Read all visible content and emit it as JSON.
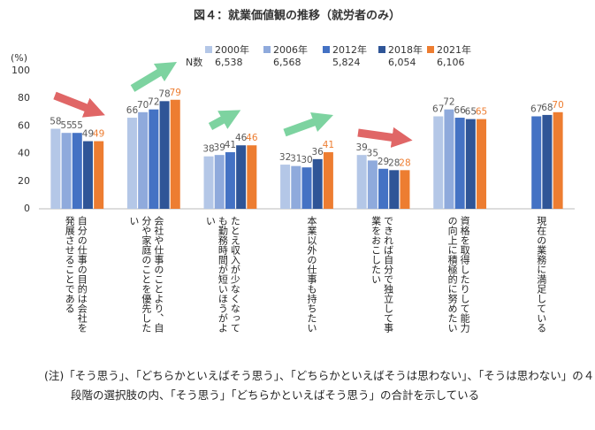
{
  "chart_data": {
    "type": "bar",
    "title": "図４：就業価値観の推移（就労者のみ）",
    "y_unit": "(%)",
    "n_label": "N数",
    "categories": [
      "自分の仕事の目的は会社を発展させることである",
      "会社や仕事のことより、自分や家庭のことを優先したい",
      "たとえ収入が少なくなっても勤務時間が短いほうがよい",
      "本業以外の仕事も持ちたい",
      "できれば自分で独立して事業をおこしたい",
      "資格を取得したりして能力の向上に積極的に努めたい",
      "現在の業務に満足している"
    ],
    "series": [
      {
        "name": "2000年",
        "n": "6,538",
        "color": "#b4c7e7",
        "label_color": "#595959",
        "values": [
          58,
          66,
          38,
          32,
          39,
          67,
          null
        ]
      },
      {
        "name": "2006年",
        "n": "6,568",
        "color": "#8faadc",
        "label_color": "#595959",
        "values": [
          55,
          70,
          39,
          31,
          35,
          72,
          null
        ]
      },
      {
        "name": "2012年",
        "n": "5,824",
        "color": "#4472c4",
        "label_color": "#595959",
        "values": [
          55,
          72,
          41,
          30,
          29,
          66,
          67
        ]
      },
      {
        "name": "2018年",
        "n": "6,054",
        "color": "#2f5597",
        "label_color": "#595959",
        "values": [
          49,
          78,
          46,
          36,
          28,
          65,
          68
        ]
      },
      {
        "name": "2021年",
        "n": "6,106",
        "color": "#ed7d31",
        "label_color": "#ed7d31",
        "values": [
          49,
          79,
          46,
          41,
          28,
          65,
          70
        ]
      }
    ],
    "ylim": [
      0,
      100
    ],
    "yticks": [
      0,
      20,
      40,
      60,
      80,
      100
    ],
    "grid": false,
    "note": "(注)「そう思う」、「どちらかといえばそう思う」、「どちらかといえばそうは思わない」、「そうは思わない」の４段階の選択肢の内、「そう思う」「どちらかといえばそう思う」の合計を示している"
  }
}
